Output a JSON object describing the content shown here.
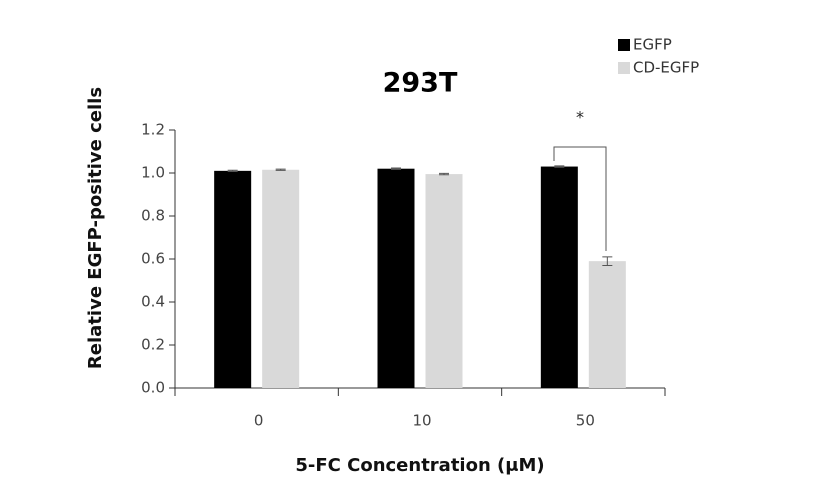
{
  "chart_data": {
    "type": "bar",
    "title": "293T",
    "xlabel": "5-FC Concentration (μM)",
    "ylabel": "Relative  EGFP-positive cells",
    "categories": [
      "0",
      "10",
      "50"
    ],
    "series": [
      {
        "name": "EGFP",
        "color": "#000000",
        "values": [
          1.01,
          1.02,
          1.03
        ],
        "errors": [
          0.003,
          0.003,
          0.003
        ]
      },
      {
        "name": "CD-EGFP",
        "color": "#d9d9d9",
        "values": [
          1.015,
          0.995,
          0.59
        ],
        "errors": [
          0.003,
          0.003,
          0.02
        ]
      }
    ],
    "ylim": [
      0,
      1.2
    ],
    "yticks": [
      {
        "value": 0,
        "label": "0.0"
      },
      0.2,
      0.4,
      0.6,
      0.8,
      {
        "value": 1,
        "label": "1.0"
      },
      1.2
    ],
    "annotations": [
      "*"
    ],
    "legend": "upper right"
  }
}
